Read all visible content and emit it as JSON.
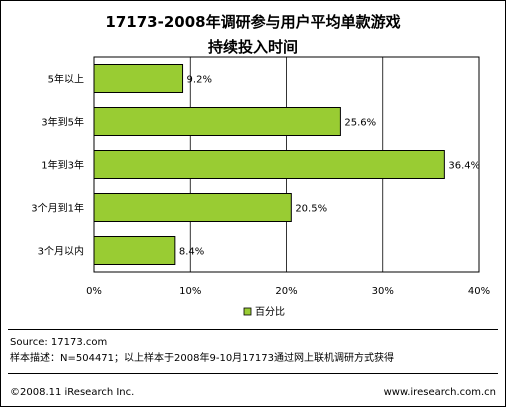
{
  "chart_data": {
    "type": "bar",
    "orientation": "horizontal",
    "title_line1": "17173-2008年调研参与用户平均单款游戏",
    "title_line2": "持续投入时间",
    "categories": [
      "5年以上",
      "3年到5年",
      "1年到3年",
      "3个月到1年",
      "3个月以内"
    ],
    "series": [
      {
        "name": "百分比",
        "values": [
          9.2,
          25.6,
          36.4,
          20.5,
          8.4
        ],
        "labels": [
          "9.2%",
          "25.6%",
          "36.4%",
          "20.5%",
          "8.4%"
        ]
      }
    ],
    "xlim": [
      0,
      40
    ],
    "xticks": [
      "0%",
      "10%",
      "20%",
      "30%",
      "40%"
    ],
    "grid": true,
    "legend": "bottom-center",
    "bar_color": "#99cc33",
    "bar_border": "#000000"
  },
  "footer": {
    "source": "Source:   17173.com",
    "sample": "样本描述：N=504471；以上样本于2008年9-10月17173通过网上联机调研方式获得",
    "copyright": "©2008.11  iResearch Inc.",
    "website": "www.iresearch.com.cn"
  }
}
